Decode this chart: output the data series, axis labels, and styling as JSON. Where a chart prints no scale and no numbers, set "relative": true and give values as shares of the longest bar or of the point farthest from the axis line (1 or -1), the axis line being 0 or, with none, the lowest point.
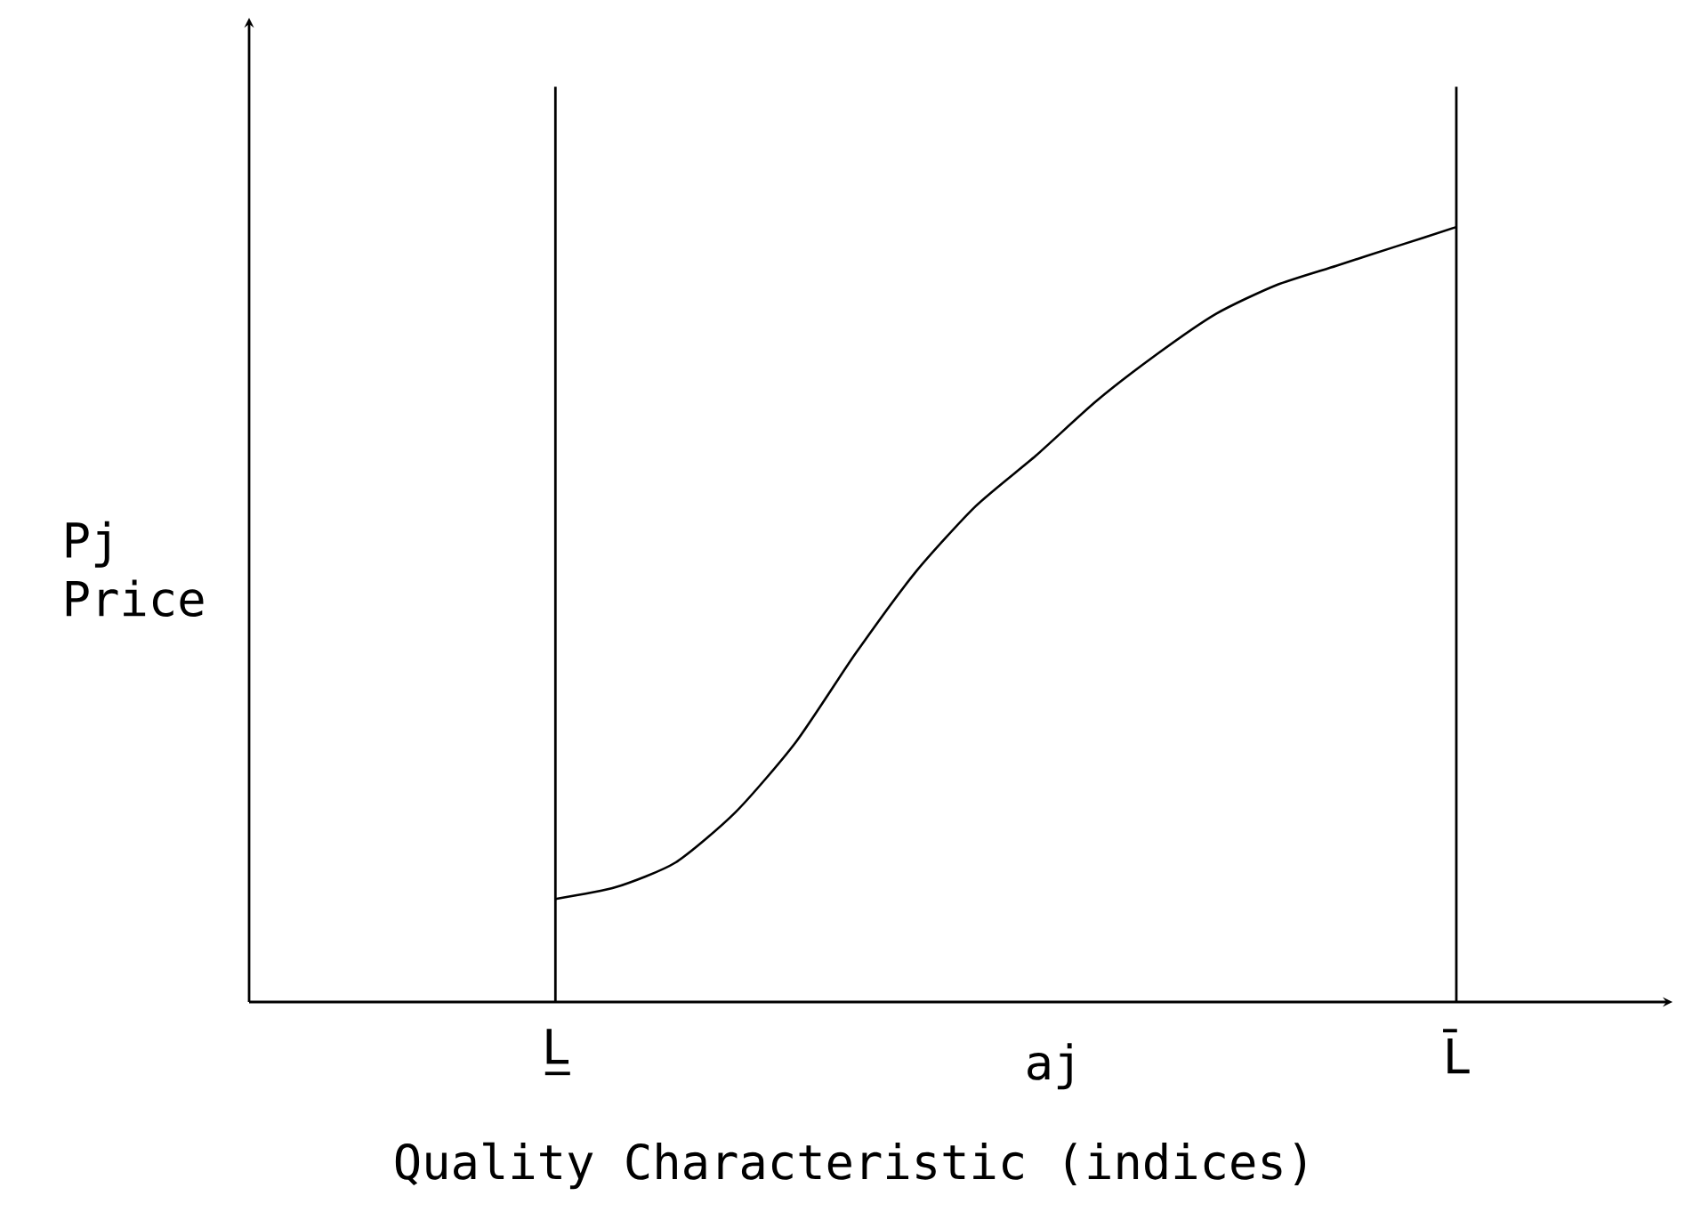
{
  "chart_data": {
    "type": "line",
    "relative": true,
    "xlabel": "Quality Characteristic (indices)",
    "annotations": [
      "Pj Price",
      "aj"
    ],
    "tick_labels": "x",
    "marker": "none",
    "line_style": "solid",
    "grid": false,
    "categories": [
      "L̲",
      null,
      null,
      null,
      null,
      null,
      null,
      null,
      null,
      null,
      null,
      null,
      null,
      null,
      null,
      "L̄"
    ],
    "ref_lines": [
      {
        "axis": "x",
        "value": "L̲",
        "color": "#000000"
      },
      {
        "axis": "x",
        "value": "L̄",
        "color": "#000000"
      }
    ],
    "series": [
      {
        "color": "#000000",
        "values": [
          0.133,
          0.148,
          0.18,
          0.245,
          0.335,
          0.45,
          0.555,
          0.64,
          0.705,
          0.775,
          0.835,
          0.888,
          0.925,
          0.95,
          0.975,
          1
        ]
      }
    ]
  }
}
